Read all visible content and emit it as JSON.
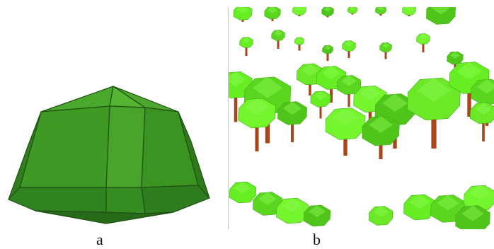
{
  "figure": {
    "panel_a": {
      "caption": "a",
      "crown_color": "#3a9a22",
      "edge_color": "#1f4f14"
    },
    "panel_b": {
      "caption": "b",
      "crown_color": "#66ee22",
      "trunk_color": "#a8461a"
    }
  }
}
